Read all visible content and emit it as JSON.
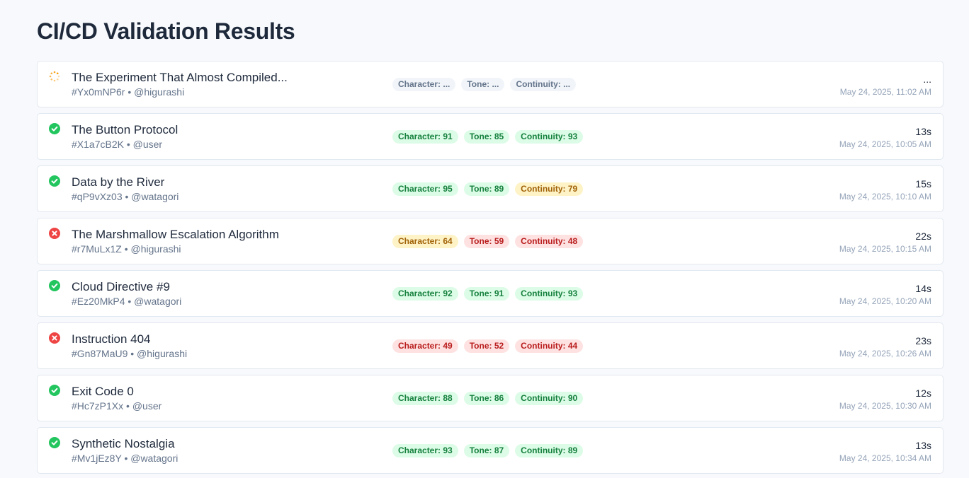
{
  "page": {
    "title": "CI/CD Validation Results"
  },
  "colors": {
    "success": "#22c55e",
    "failure": "#ef4444",
    "pending": "#f59e0b"
  },
  "runs": [
    {
      "status": "pending",
      "status_icon": "spinner-icon",
      "title": "The Experiment That Almost Compiled...",
      "meta": "#Yx0mNP6r • @higurashi",
      "badges": [
        {
          "label": "Character: ...",
          "level": "gray"
        },
        {
          "label": "Tone: ...",
          "level": "gray"
        },
        {
          "label": "Continuity: ...",
          "level": "gray"
        }
      ],
      "duration": "...",
      "timestamp": "May 24, 2025, 11:02 AM"
    },
    {
      "status": "success",
      "status_icon": "check-circle-icon",
      "title": "The Button Protocol",
      "meta": "#X1a7cB2K • @user",
      "badges": [
        {
          "label": "Character: 91",
          "level": "green"
        },
        {
          "label": "Tone: 85",
          "level": "green"
        },
        {
          "label": "Continuity: 93",
          "level": "green"
        }
      ],
      "duration": "13s",
      "timestamp": "May 24, 2025, 10:05 AM"
    },
    {
      "status": "success",
      "status_icon": "check-circle-icon",
      "title": "Data by the River",
      "meta": "#qP9vXz03 • @watagori",
      "badges": [
        {
          "label": "Character: 95",
          "level": "green"
        },
        {
          "label": "Tone: 89",
          "level": "green"
        },
        {
          "label": "Continuity: 79",
          "level": "yellow"
        }
      ],
      "duration": "15s",
      "timestamp": "May 24, 2025, 10:10 AM"
    },
    {
      "status": "failure",
      "status_icon": "x-circle-icon",
      "title": "The Marshmallow Escalation Algorithm",
      "meta": "#r7MuLx1Z • @higurashi",
      "badges": [
        {
          "label": "Character: 64",
          "level": "yellow"
        },
        {
          "label": "Tone: 59",
          "level": "red"
        },
        {
          "label": "Continuity: 48",
          "level": "red"
        }
      ],
      "duration": "22s",
      "timestamp": "May 24, 2025, 10:15 AM"
    },
    {
      "status": "success",
      "status_icon": "check-circle-icon",
      "title": "Cloud Directive #9",
      "meta": "#Ez20MkP4 • @watagori",
      "badges": [
        {
          "label": "Character: 92",
          "level": "green"
        },
        {
          "label": "Tone: 91",
          "level": "green"
        },
        {
          "label": "Continuity: 93",
          "level": "green"
        }
      ],
      "duration": "14s",
      "timestamp": "May 24, 2025, 10:20 AM"
    },
    {
      "status": "failure",
      "status_icon": "x-circle-icon",
      "title": "Instruction 404",
      "meta": "#Gn87MaU9 • @higurashi",
      "badges": [
        {
          "label": "Character: 49",
          "level": "red"
        },
        {
          "label": "Tone: 52",
          "level": "red"
        },
        {
          "label": "Continuity: 44",
          "level": "red"
        }
      ],
      "duration": "23s",
      "timestamp": "May 24, 2025, 10:26 AM"
    },
    {
      "status": "success",
      "status_icon": "check-circle-icon",
      "title": "Exit Code 0",
      "meta": "#Hc7zP1Xx • @user",
      "badges": [
        {
          "label": "Character: 88",
          "level": "green"
        },
        {
          "label": "Tone: 86",
          "level": "green"
        },
        {
          "label": "Continuity: 90",
          "level": "green"
        }
      ],
      "duration": "12s",
      "timestamp": "May 24, 2025, 10:30 AM"
    },
    {
      "status": "success",
      "status_icon": "check-circle-icon",
      "title": "Synthetic Nostalgia",
      "meta": "#Mv1jEz8Y • @watagori",
      "badges": [
        {
          "label": "Character: 93",
          "level": "green"
        },
        {
          "label": "Tone: 87",
          "level": "green"
        },
        {
          "label": "Continuity: 89",
          "level": "green"
        }
      ],
      "duration": "13s",
      "timestamp": "May 24, 2025, 10:34 AM"
    }
  ]
}
